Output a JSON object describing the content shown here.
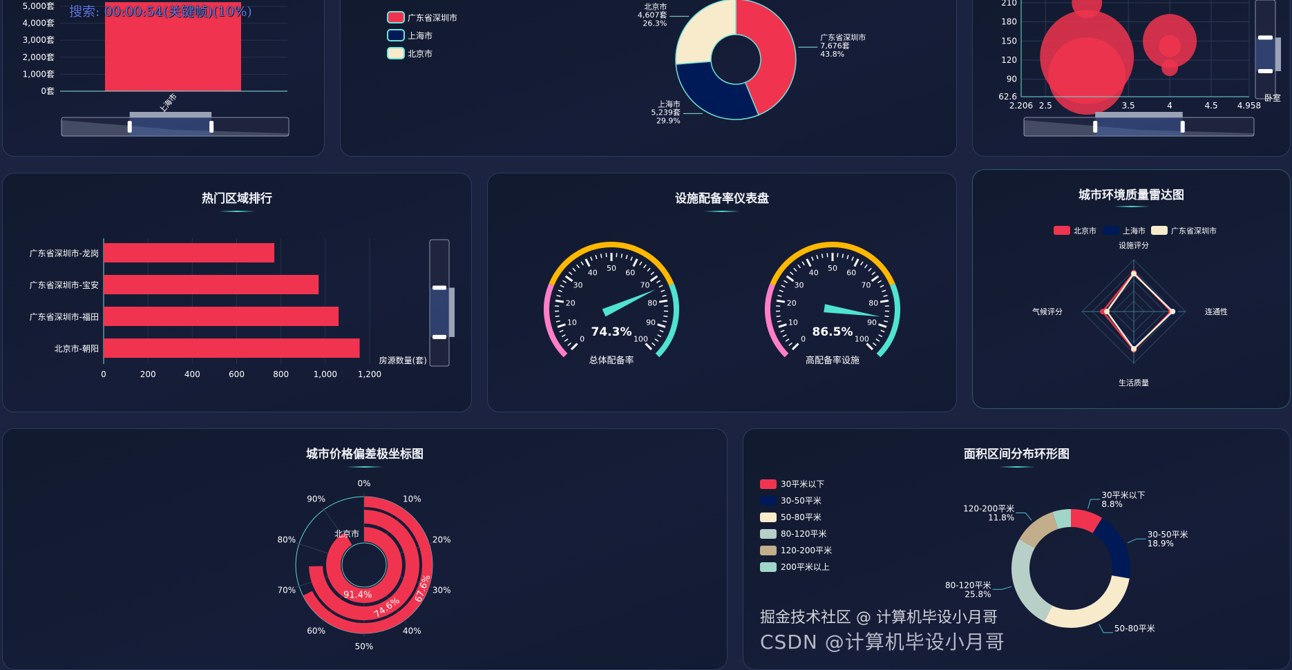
{
  "overlay": {
    "search_text": "搜索: 00:00:54(关键帧)(10%)",
    "watermark_csdn": "CSDN @计算机毕设小月哥",
    "watermark_juejin": "掘金技术社区 @ 计算机毕设小月哥"
  },
  "panels": {
    "region_rank_title": "热门区域排行",
    "gauge_title": "设施配备率仪表盘",
    "radar_title": "城市环境质量雷达图",
    "polar_title": "城市价格偏差极坐标图",
    "area_title": "面积区间分布环形图"
  },
  "colors": {
    "accent": "#f0344f",
    "navy": "#001a57",
    "cream": "#f7ebcc",
    "teal": "#4fe3d0",
    "yellow": "#ffb800",
    "pink": "#ff7ec8"
  },
  "chart_data": [
    {
      "id": "city_bar",
      "type": "bar",
      "categories": [
        "上海市"
      ],
      "values": [
        5239
      ],
      "ytick_labels": [
        "0套",
        "1,000套",
        "2,000套",
        "3,000套",
        "4,000套",
        "5,000套"
      ],
      "yticks": [
        0,
        1000,
        2000,
        3000,
        4000,
        5000
      ],
      "ylim": [
        0,
        5000
      ],
      "datazoom": {
        "start": 0.3,
        "end": 0.66
      }
    },
    {
      "id": "city_pie",
      "type": "pie",
      "donut": true,
      "legend": [
        "广东省深圳市",
        "上海市",
        "北京市"
      ],
      "legend_placement": "top-left",
      "slices": [
        {
          "name": "广东省深圳市",
          "value": 7676,
          "value_label": "7,676套",
          "pct": "43.8%",
          "color": "#f0344f"
        },
        {
          "name": "上海市",
          "value": 5239,
          "value_label": "5,239套",
          "pct": "29.9%",
          "color": "#001a57"
        },
        {
          "name": "北京市",
          "value": 4607,
          "value_label": "4,607套",
          "pct": "26.3%",
          "color": "#f7ebcc"
        }
      ]
    },
    {
      "id": "bubble",
      "type": "scatter",
      "xlim": [
        2.206,
        4.958
      ],
      "ylim": [
        62.6,
        210
      ],
      "xtick_labels": [
        "2.206",
        "2.5",
        "3.5",
        "4",
        "4.5",
        "4.958"
      ],
      "xticks": [
        2.206,
        2.5,
        3.5,
        4,
        4.5,
        4.958
      ],
      "ytick_labels": [
        "62.6",
        "90",
        "120",
        "150",
        "180",
        "210"
      ],
      "yticks": [
        62.6,
        90,
        120,
        150,
        180,
        210
      ],
      "grid": true,
      "y_zoom_label": "卧室",
      "points": [
        {
          "x": 3.0,
          "y": 210,
          "size": 22
        },
        {
          "x": 3.0,
          "y": 125,
          "size": 68
        },
        {
          "x": 3.0,
          "y": 95,
          "size": 56
        },
        {
          "x": 4.0,
          "y": 150,
          "size": 39
        },
        {
          "x": 4.0,
          "y": 142,
          "size": 16
        },
        {
          "x": 4.0,
          "y": 108,
          "size": 12
        }
      ],
      "datazoom_x": {
        "start": 0.31,
        "end": 0.69
      },
      "datazoom_y": {
        "start": 0.38,
        "end": 0.72
      }
    },
    {
      "id": "region_rank",
      "type": "bar",
      "orientation": "horizontal",
      "categories": [
        "广东省深圳市-龙岗",
        "广东省深圳市-宝安",
        "广东省深圳市-福田",
        "北京市-朝阳"
      ],
      "values": [
        770,
        970,
        1060,
        1155
      ],
      "xlim": [
        0,
        1200
      ],
      "xticks": [
        0,
        200,
        400,
        600,
        800,
        1000,
        1200
      ],
      "xtick_labels": [
        "0",
        "200",
        "400",
        "600",
        "800",
        "1,000",
        "1,200"
      ],
      "xlabel": "房源数量(套)",
      "grid": true
    },
    {
      "id": "gauges",
      "type": "gauge",
      "min": 0,
      "max": 100,
      "tick_labels": [
        "0",
        "10",
        "20",
        "30",
        "40",
        "50",
        "60",
        "70",
        "80",
        "90",
        "100"
      ],
      "items": [
        {
          "name": "总体配备率",
          "value": 74.3,
          "value_label": "74.3%"
        },
        {
          "name": "高配备率设施",
          "value": 86.5,
          "value_label": "86.5%"
        }
      ],
      "bands": [
        {
          "to": 0.25,
          "color": "#ff7ec8"
        },
        {
          "to": 0.75,
          "color": "#ffb800"
        },
        {
          "to": 1,
          "color": "#4fe3d0"
        }
      ]
    },
    {
      "id": "radar",
      "type": "radar",
      "indicators": [
        "设施评分",
        "连通性",
        "生活质量",
        "气候评分"
      ],
      "max": 100,
      "legend": [
        "北京市",
        "上海市",
        "广东省深圳市"
      ],
      "legend_placement": "top",
      "series": [
        {
          "name": "北京市",
          "values": [
            75,
            72,
            74,
            60
          ],
          "color": "#f0344f"
        },
        {
          "name": "上海市",
          "values": [
            72,
            80,
            67,
            52
          ],
          "color": "#001a57"
        },
        {
          "name": "广东省深圳市",
          "values": [
            73,
            75,
            72,
            52
          ],
          "color": "#f7ebcc"
        }
      ]
    },
    {
      "id": "polar",
      "type": "bar",
      "coordinate": "polar",
      "angle_tick_labels": [
        "0%",
        "10%",
        "20%",
        "30%",
        "40%",
        "50%",
        "60%",
        "70%",
        "80%",
        "90%"
      ],
      "category_label": "北京市",
      "values": [
        91.4,
        74.6,
        67.6
      ],
      "value_labels": [
        "91.4%",
        "74.6%",
        "67.6%"
      ]
    },
    {
      "id": "area_donut",
      "type": "pie",
      "donut": true,
      "legend_placement": "left",
      "slices": [
        {
          "name": "30平米以下",
          "value": 8.8,
          "pct": "8.8%",
          "color": "#f0344f"
        },
        {
          "name": "30-50平米",
          "value": 18.9,
          "pct": "18.9%",
          "color": "#001a57"
        },
        {
          "name": "50-80平米",
          "value": 29.7,
          "pct": "",
          "color": "#f7ebcc"
        },
        {
          "name": "80-120平米",
          "value": 25.8,
          "pct": "25.8%",
          "color": "#b8cfc8"
        },
        {
          "name": "120-200平米",
          "value": 11.8,
          "pct": "11.8%",
          "color": "#c2ae8a"
        },
        {
          "name": "200平米以上",
          "value": 5.0,
          "pct": "",
          "color": "#a0d6c8"
        }
      ]
    }
  ]
}
